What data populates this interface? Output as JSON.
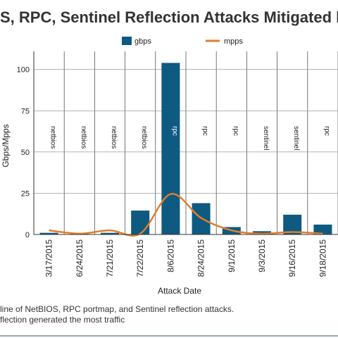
{
  "chart_data": {
    "type": "bar",
    "title": "S, RPC, Sentinel Reflection Attacks Mitigated by",
    "xlabel": "Attack Date",
    "ylabel": "Gbps/Mpps",
    "ylim": [
      0,
      105
    ],
    "yticks": [
      0,
      25,
      50,
      75,
      100
    ],
    "legend_position": "top",
    "categories": [
      "3/17/2015",
      "6/24/2015",
      "7/21/2015",
      "7/22/2015",
      "8/6/2015",
      "8/24/2015",
      "9/1/2015",
      "9/3/2015",
      "9/16/2015",
      "9/18/2015"
    ],
    "annotations": [
      "netbios",
      "netbios",
      "netbios",
      "netbios",
      "rpc",
      "rpc",
      "rpc",
      "sentinel",
      "sentinel",
      "rpc"
    ],
    "series": [
      {
        "name": "gbps",
        "type": "bar",
        "color": "#0e5a80",
        "values": [
          1,
          1,
          1,
          14.5,
          104,
          19,
          4.5,
          2,
          12,
          6
        ]
      },
      {
        "name": "mpps",
        "type": "line",
        "color": "#e07e2c",
        "values": [
          2.5,
          0.5,
          2.5,
          0.5,
          24.5,
          10,
          2.5,
          0.5,
          1.5,
          0.5
        ]
      }
    ],
    "grid": true
  },
  "captions": [
    "line of NetBIOS, RPC portmap, and Sentinel reflection attacks.",
    "flection generated the most traffic"
  ]
}
